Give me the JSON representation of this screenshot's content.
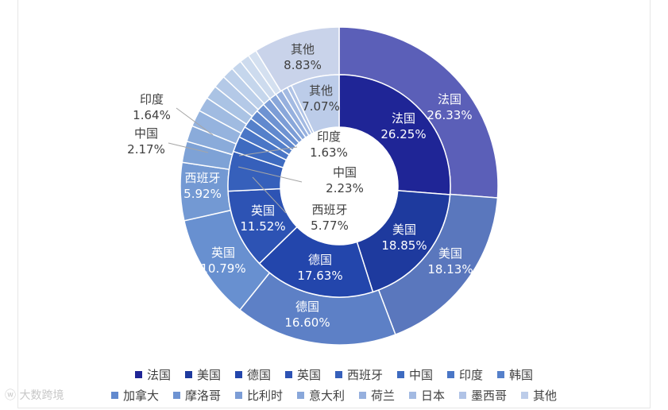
{
  "chart_data": {
    "type": "donut",
    "title": "",
    "inner_ring": {
      "categories": [
        "法国",
        "美国",
        "德国",
        "英国",
        "西班牙",
        "中国",
        "印度",
        "韩国",
        "加拿大",
        "摩洛哥",
        "比利时",
        "意大利",
        "荷兰",
        "日本",
        "墨西哥",
        "其他"
      ],
      "values": [
        26.25,
        18.85,
        17.63,
        11.52,
        5.77,
        2.23,
        1.63,
        1.5,
        1.4,
        1.3,
        1.2,
        1.1,
        1.0,
        0.9,
        0.65,
        7.07
      ],
      "labels": [
        {
          "name": "法国",
          "pct": "26.25%"
        },
        {
          "name": "美国",
          "pct": "18.85%"
        },
        {
          "name": "德国",
          "pct": "17.63%"
        },
        {
          "name": "英国",
          "pct": "11.52%"
        },
        {
          "name": "西班牙",
          "pct": "5.77%"
        },
        {
          "name": "中国",
          "pct": "2.23%"
        },
        {
          "name": "印度",
          "pct": "1.63%"
        },
        {
          "name": "其他",
          "pct": "7.07%"
        }
      ]
    },
    "outer_ring": {
      "categories": [
        "法国",
        "美国",
        "德国",
        "英国",
        "西班牙",
        "中国",
        "印度",
        "韩国",
        "加拿大",
        "摩洛哥",
        "比利时",
        "意大利",
        "荷兰",
        "日本",
        "墨西哥",
        "其他"
      ],
      "values": [
        26.33,
        18.13,
        16.6,
        10.79,
        5.92,
        2.17,
        1.64,
        1.7,
        1.5,
        1.4,
        1.3,
        1.2,
        1.1,
        1.0,
        0.9,
        8.83
      ],
      "labels": [
        {
          "name": "法国",
          "pct": "26.33%"
        },
        {
          "name": "美国",
          "pct": "18.13%"
        },
        {
          "name": "德国",
          "pct": "16.60%"
        },
        {
          "name": "英国",
          "pct": "10.79%"
        },
        {
          "name": "西班牙",
          "pct": "5.92%"
        },
        {
          "name": "中国",
          "pct": "2.17%"
        },
        {
          "name": "印度",
          "pct": "1.64%"
        },
        {
          "name": "其他",
          "pct": "8.83%"
        }
      ]
    },
    "legend_placement": "bottom",
    "legend": [
      "法国",
      "美国",
      "德国",
      "英国",
      "西班牙",
      "中国",
      "印度",
      "韩国",
      "加拿大",
      "摩洛哥",
      "比利时",
      "意大利",
      "荷兰",
      "日本",
      "墨西哥",
      "其他"
    ],
    "colors": {
      "inner": [
        "#1f2596",
        "#1e3a9e",
        "#2346ac",
        "#2d53b4",
        "#3660bb",
        "#3e6bc0",
        "#4a76c6",
        "#5580ca",
        "#6189ce",
        "#6e93d2",
        "#7c9dd6",
        "#89a7da",
        "#96b0de",
        "#a3bae2",
        "#b0c3e6",
        "#bccce9"
      ],
      "outer": [
        "#5b5fb8",
        "#5a77bd",
        "#5d80c6",
        "#6890d0",
        "#7399d3",
        "#7ea2d6",
        "#8aabda",
        "#95b3de",
        "#a0bbe1",
        "#aac3e4",
        "#b4c9e7",
        "#bdd0ea",
        "#c5d6ec",
        "#cddbee",
        "#d4e0f0",
        "#c9d3ea"
      ],
      "legend": [
        "#1f2596",
        "#1e3a9e",
        "#2346ac",
        "#2d53b4",
        "#3660bb",
        "#3e6bc0",
        "#4a76c6",
        "#5580ca",
        "#6189ce",
        "#6e93d2",
        "#7c9dd6",
        "#89a7da",
        "#96b0de",
        "#a3bae2",
        "#b0c3e6",
        "#bccce9"
      ]
    }
  },
  "watermark": "大数跨境"
}
